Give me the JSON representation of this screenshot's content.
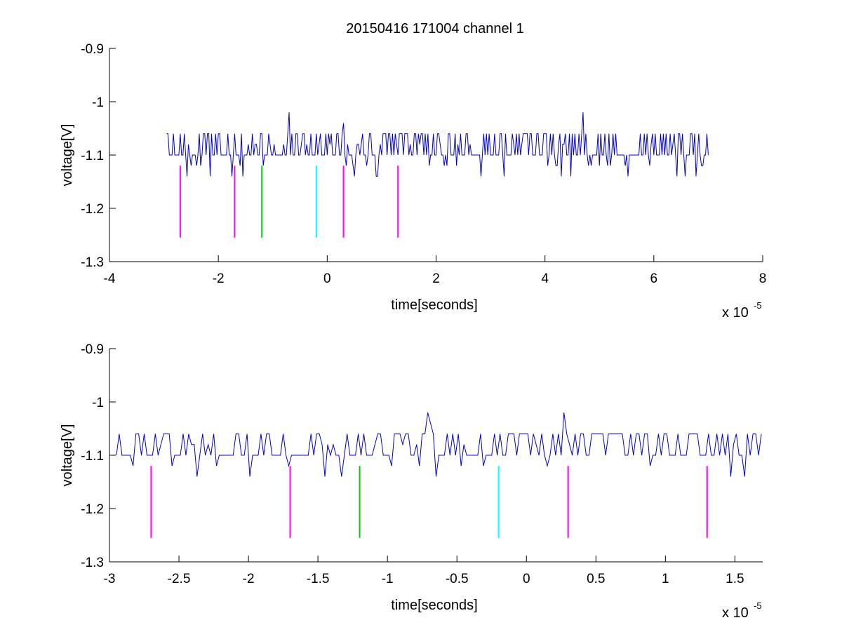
{
  "figure": {
    "title": "20150416 171004 channel 1",
    "background": "#ffffff"
  },
  "chart_data": [
    {
      "type": "line",
      "name": "top-panel",
      "title": "20150416 171004 channel 1",
      "xlabel": "time[seconds]",
      "ylabel": "voltage[V]",
      "x_scale_label": "x 10",
      "x_scale_exponent": "-5",
      "x_units_scale": 1e-05,
      "xlim": [
        -4,
        8
      ],
      "ylim": [
        -1.3,
        -0.9
      ],
      "xticks": [
        -4,
        -2,
        0,
        2,
        4,
        6,
        8
      ],
      "xtick_labels": [
        "-4",
        "-2",
        "0",
        "2",
        "4",
        "6",
        "8"
      ],
      "yticks": [
        -1.3,
        -1.2,
        -1.1,
        -1.0,
        -0.9
      ],
      "ytick_labels": [
        "-1.3",
        "-1.2",
        "-1.1",
        "-1",
        "-0.9"
      ],
      "grid": false,
      "signal": {
        "color": "#0000cc",
        "x_range": [
          -2.95,
          7.0
        ],
        "baseline": -1.1,
        "levels": [
          -1.14,
          -1.12,
          -1.1,
          -1.08,
          -1.06
        ],
        "spikes": [
          {
            "x": -0.7,
            "y": -1.02
          },
          {
            "x": 0.3,
            "y": -1.02
          },
          {
            "x": 4.7,
            "y": -1.02
          },
          {
            "x": 0.29,
            "y": -1.04
          }
        ]
      },
      "markers": [
        {
          "x": -2.7,
          "y_top": -1.12,
          "y_bottom": -1.255,
          "color": "#ff00ff"
        },
        {
          "x": -1.7,
          "y_top": -1.12,
          "y_bottom": -1.255,
          "color": "#ff00ff"
        },
        {
          "x": -1.2,
          "y_top": -1.12,
          "y_bottom": -1.255,
          "color": "#00cc00"
        },
        {
          "x": -0.2,
          "y_top": -1.12,
          "y_bottom": -1.255,
          "color": "#00ffff"
        },
        {
          "x": 0.3,
          "y_top": -1.12,
          "y_bottom": -1.255,
          "color": "#ff00ff"
        },
        {
          "x": 1.3,
          "y_top": -1.12,
          "y_bottom": -1.255,
          "color": "#ff00ff"
        }
      ]
    },
    {
      "type": "line",
      "name": "bottom-panel",
      "title": "",
      "xlabel": "time[seconds]",
      "ylabel": "voltage[V]",
      "x_scale_label": "x 10",
      "x_scale_exponent": "-5",
      "x_units_scale": 1e-05,
      "xlim": [
        -3.0,
        1.7
      ],
      "ylim": [
        -1.3,
        -0.9
      ],
      "xticks": [
        -3,
        -2.5,
        -2,
        -1.5,
        -1,
        -0.5,
        0,
        0.5,
        1,
        1.5
      ],
      "xtick_labels": [
        "-3",
        "-2.5",
        "-2",
        "-1.5",
        "-1",
        "-0.5",
        "0",
        "0.5",
        "1",
        "1.5"
      ],
      "yticks": [
        -1.3,
        -1.2,
        -1.1,
        -1.0,
        -0.9
      ],
      "ytick_labels": [
        "-1.3",
        "-1.2",
        "-1.1",
        "-1",
        "-0.9"
      ],
      "grid": false,
      "signal": {
        "color": "#0000cc",
        "x_range": [
          -2.95,
          1.7
        ],
        "baseline": -1.1,
        "levels": [
          -1.14,
          -1.12,
          -1.1,
          -1.08,
          -1.06
        ],
        "spikes": [
          {
            "x": -0.7,
            "y": -1.02
          },
          {
            "x": 0.27,
            "y": -1.02
          },
          {
            "x": -0.68,
            "y": -1.04
          }
        ]
      },
      "markers": [
        {
          "x": -2.7,
          "y_top": -1.12,
          "y_bottom": -1.255,
          "color": "#ff00ff"
        },
        {
          "x": -1.7,
          "y_top": -1.12,
          "y_bottom": -1.255,
          "color": "#ff00ff"
        },
        {
          "x": -1.2,
          "y_top": -1.12,
          "y_bottom": -1.255,
          "color": "#00cc00"
        },
        {
          "x": -0.2,
          "y_top": -1.12,
          "y_bottom": -1.255,
          "color": "#00ffff"
        },
        {
          "x": 0.3,
          "y_top": -1.12,
          "y_bottom": -1.255,
          "color": "#ff00ff"
        },
        {
          "x": 1.3,
          "y_top": -1.12,
          "y_bottom": -1.255,
          "color": "#ff00ff"
        }
      ]
    }
  ]
}
